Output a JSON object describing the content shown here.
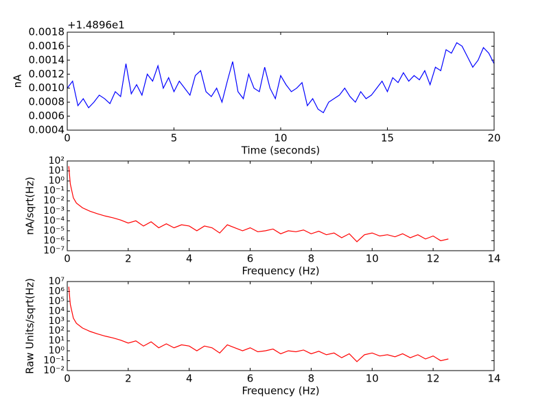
{
  "chart_data": [
    {
      "type": "line",
      "xlabel": "Time (seconds)",
      "ylabel": "nA",
      "offset_text": "+1.4896e1",
      "xlim": [
        0,
        20
      ],
      "xticks": [
        0,
        5,
        10,
        15,
        20
      ],
      "ylim": [
        0.0004,
        0.0018
      ],
      "yticks": [
        {
          "value": 0.0004,
          "label": "0.0004"
        },
        {
          "value": 0.0006,
          "label": "0.0006"
        },
        {
          "value": 0.0008,
          "label": "0.0008"
        },
        {
          "value": 0.001,
          "label": "0.0010"
        },
        {
          "value": 0.0012,
          "label": "0.0012"
        },
        {
          "value": 0.0014,
          "label": "0.0014"
        },
        {
          "value": 0.0016,
          "label": "0.0016"
        },
        {
          "value": 0.0018,
          "label": "0.0018"
        }
      ],
      "x": [
        0,
        0.25,
        0.5,
        0.75,
        1,
        1.25,
        1.5,
        1.75,
        2,
        2.25,
        2.5,
        2.75,
        3,
        3.25,
        3.5,
        3.75,
        4,
        4.25,
        4.5,
        4.75,
        5,
        5.25,
        5.5,
        5.75,
        6,
        6.25,
        6.5,
        6.75,
        7,
        7.25,
        7.5,
        7.75,
        8,
        8.25,
        8.5,
        8.75,
        9,
        9.25,
        9.5,
        9.75,
        10,
        10.25,
        10.5,
        10.75,
        11,
        11.25,
        11.5,
        11.75,
        12,
        12.25,
        12.5,
        12.75,
        13,
        13.25,
        13.5,
        13.75,
        14,
        14.25,
        14.5,
        14.75,
        15,
        15.25,
        15.5,
        15.75,
        16,
        16.25,
        16.5,
        16.75,
        17,
        17.25,
        17.5,
        17.75,
        18,
        18.25,
        18.5,
        18.75,
        19,
        19.25,
        19.5,
        19.75,
        20
      ],
      "series": [
        {
          "color": "#0000ff",
          "values": [
            0.001,
            0.0011,
            0.00075,
            0.00085,
            0.00072,
            0.0008,
            0.0009,
            0.00085,
            0.00078,
            0.00095,
            0.00088,
            0.00135,
            0.00092,
            0.00105,
            0.0009,
            0.0012,
            0.0011,
            0.00132,
            0.001,
            0.00115,
            0.00095,
            0.0011,
            0.001,
            0.0009,
            0.00118,
            0.00125,
            0.00095,
            0.00088,
            0.001,
            0.0008,
            0.0011,
            0.00138,
            0.00095,
            0.00085,
            0.0012,
            0.001,
            0.00095,
            0.0013,
            0.001,
            0.00085,
            0.00118,
            0.00105,
            0.00095,
            0.001,
            0.00108,
            0.00075,
            0.00085,
            0.0007,
            0.00065,
            0.0008,
            0.00085,
            0.0009,
            0.001,
            0.00088,
            0.0008,
            0.00095,
            0.00085,
            0.0009,
            0.001,
            0.0011,
            0.00095,
            0.00115,
            0.00108,
            0.00122,
            0.0011,
            0.00118,
            0.00112,
            0.00125,
            0.00105,
            0.0013,
            0.00125,
            0.00155,
            0.0015,
            0.00165,
            0.0016,
            0.00145,
            0.0013,
            0.0014,
            0.00158,
            0.0015,
            0.00135
          ]
        }
      ]
    },
    {
      "type": "line",
      "xlabel": "Frequency (Hz)",
      "ylabel": "nA/sqrt(Hz)",
      "yscale": "log",
      "xlim": [
        0,
        14
      ],
      "xticks": [
        0,
        2,
        4,
        6,
        8,
        10,
        12,
        14
      ],
      "ylim": [
        1e-07,
        100
      ],
      "yticks": [
        {
          "value": 1e-07,
          "label": "10⁻⁷"
        },
        {
          "value": 1e-06,
          "label": "10⁻⁶"
        },
        {
          "value": 1e-05,
          "label": "10⁻⁵"
        },
        {
          "value": 0.0001,
          "label": "10⁻⁴"
        },
        {
          "value": 0.001,
          "label": "10⁻³"
        },
        {
          "value": 0.01,
          "label": "10⁻²"
        },
        {
          "value": 0.1,
          "label": "10⁻¹"
        },
        {
          "value": 1,
          "label": "10⁰"
        },
        {
          "value": 10,
          "label": "10¹"
        },
        {
          "value": 100,
          "label": "10²"
        }
      ],
      "x": [
        0.05,
        0.1,
        0.2,
        0.3,
        0.5,
        0.75,
        1,
        1.25,
        1.5,
        1.75,
        2,
        2.25,
        2.5,
        2.75,
        3,
        3.25,
        3.5,
        3.75,
        4,
        4.25,
        4.5,
        4.75,
        5,
        5.25,
        5.5,
        5.75,
        6,
        6.25,
        6.5,
        6.75,
        7,
        7.25,
        7.5,
        7.75,
        8,
        8.25,
        8.5,
        8.75,
        9,
        9.25,
        9.5,
        9.75,
        10,
        10.25,
        10.5,
        10.75,
        11,
        11.25,
        11.5,
        11.75,
        12,
        12.25,
        12.5
      ],
      "series": [
        {
          "color": "#ff0000",
          "values": [
            30,
            0.5,
            0.02,
            0.006,
            0.002,
            0.0009,
            0.0005,
            0.0003,
            0.0002,
            0.00012,
            6e-05,
            0.0001,
            3e-05,
            8e-05,
            2e-05,
            5e-05,
            2e-05,
            4e-05,
            3e-05,
            1e-05,
            3e-05,
            2e-05,
            6e-06,
            4e-05,
            2e-05,
            1e-05,
            2e-05,
            8e-06,
            1e-05,
            1.5e-05,
            5e-06,
            1e-05,
            8e-06,
            1.2e-05,
            5e-06,
            9e-06,
            4e-06,
            6e-06,
            2e-06,
            5e-06,
            8e-07,
            4e-06,
            6e-06,
            3e-06,
            4e-06,
            2.5e-06,
            5e-06,
            2e-06,
            4e-06,
            1.5e-06,
            3e-06,
            1e-06,
            1.5e-06
          ]
        }
      ]
    },
    {
      "type": "line",
      "xlabel": "Frequency (Hz)",
      "ylabel": "Raw Units/sqrt(Hz)",
      "yscale": "log",
      "xlim": [
        0,
        14
      ],
      "xticks": [
        0,
        2,
        4,
        6,
        8,
        10,
        12,
        14
      ],
      "ylim": [
        0.01,
        10000000
      ],
      "yticks": [
        {
          "value": 0.01,
          "label": "10⁻²"
        },
        {
          "value": 0.1,
          "label": "10⁻¹"
        },
        {
          "value": 1,
          "label": "10⁰"
        },
        {
          "value": 10,
          "label": "10¹"
        },
        {
          "value": 100,
          "label": "10²"
        },
        {
          "value": 1000,
          "label": "10³"
        },
        {
          "value": 10000,
          "label": "10⁴"
        },
        {
          "value": 100000,
          "label": "10⁵"
        },
        {
          "value": 1000000,
          "label": "10⁶"
        },
        {
          "value": 10000000,
          "label": "10⁷"
        }
      ],
      "x": [
        0.05,
        0.1,
        0.2,
        0.3,
        0.5,
        0.75,
        1,
        1.25,
        1.5,
        1.75,
        2,
        2.25,
        2.5,
        2.75,
        3,
        3.25,
        3.5,
        3.75,
        4,
        4.25,
        4.5,
        4.75,
        5,
        5.25,
        5.5,
        5.75,
        6,
        6.25,
        6.5,
        6.75,
        7,
        7.25,
        7.5,
        7.75,
        8,
        8.25,
        8.5,
        8.75,
        9,
        9.25,
        9.5,
        9.75,
        10,
        10.25,
        10.5,
        10.75,
        11,
        11.25,
        11.5,
        11.75,
        12,
        12.25,
        12.5
      ],
      "series": [
        {
          "color": "#ff0000",
          "values": [
            3000000,
            50000,
            2000,
            600,
            200,
            90,
            50,
            30,
            20,
            12,
            6,
            10,
            3,
            8,
            2,
            5,
            2,
            4,
            3,
            1,
            3,
            2,
            0.6,
            4,
            2,
            1,
            2,
            0.8,
            1,
            1.5,
            0.5,
            1,
            0.8,
            1.2,
            0.5,
            0.9,
            0.4,
            0.6,
            0.2,
            0.5,
            0.08,
            0.4,
            0.6,
            0.3,
            0.4,
            0.25,
            0.5,
            0.2,
            0.4,
            0.15,
            0.3,
            0.1,
            0.15
          ]
        }
      ]
    }
  ]
}
